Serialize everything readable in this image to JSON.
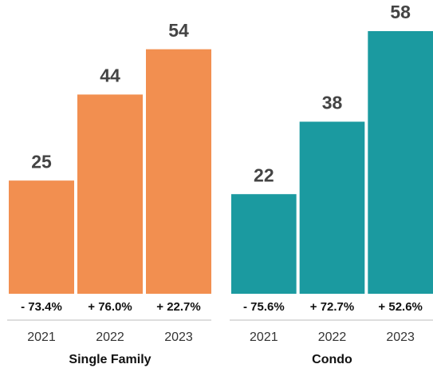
{
  "chart_data": [
    {
      "type": "bar",
      "xlabel": "Single Family",
      "categories": [
        "2021",
        "2022",
        "2023"
      ],
      "values": [
        25,
        44,
        54
      ],
      "annotations": [
        "- 73.4%",
        "+ 76.0%",
        "+ 22.7%"
      ],
      "color": "#f28f50"
    },
    {
      "type": "bar",
      "xlabel": "Condo",
      "categories": [
        "2021",
        "2022",
        "2023"
      ],
      "values": [
        22,
        38,
        58
      ],
      "annotations": [
        "- 75.6%",
        "+ 72.7%",
        "+ 52.6%"
      ],
      "color": "#1b9aa0"
    }
  ]
}
